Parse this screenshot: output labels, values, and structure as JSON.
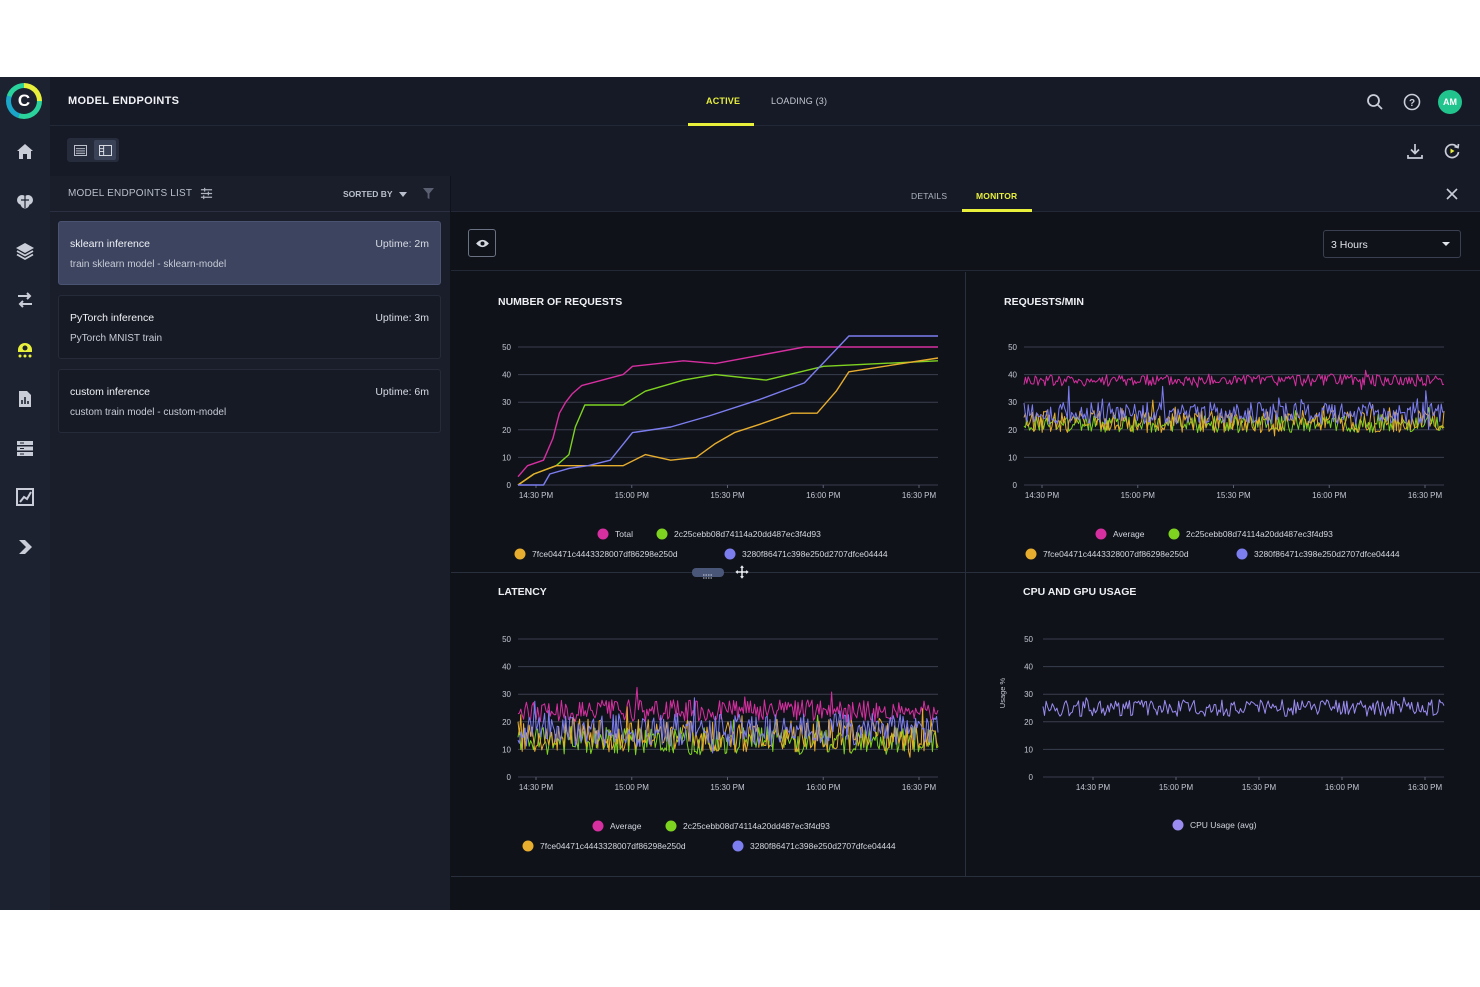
{
  "header": {
    "title": "MODEL ENDPOINTS",
    "tabs": [
      {
        "label": "ACTIVE"
      },
      {
        "label": "LOADING (3)"
      }
    ],
    "avatar_initials": "AM"
  },
  "list": {
    "title": "MODEL ENDPOINTS LIST",
    "sort_label": "SORTED BY",
    "endpoints": [
      {
        "name": "sklearn inference",
        "subtitle": "train sklearn model - sklearn-model",
        "uptime": "Uptime: 2m",
        "selected": true
      },
      {
        "name": "PyTorch inference",
        "subtitle": "PyTorch MNIST train",
        "uptime": "Uptime: 3m",
        "selected": false
      },
      {
        "name": "custom inference",
        "subtitle": "custom train model - custom-model",
        "uptime": "Uptime: 6m",
        "selected": false
      }
    ]
  },
  "detail_tabs": [
    {
      "label": "DETAILS"
    },
    {
      "label": "MONITOR"
    }
  ],
  "time_range": {
    "value": "3 Hours"
  },
  "colors": {
    "pink": "#d62fa0",
    "green": "#7ed321",
    "yellow": "#e6ad2e",
    "purple": "#7c7ef0",
    "accent": "#e8f03c"
  },
  "chart_data": [
    {
      "type": "line",
      "title": "NUMBER OF REQUESTS",
      "x_ticks": [
        "14:30 PM",
        "15:00 PM",
        "15:30 PM",
        "16:00 PM",
        "16:30 PM"
      ],
      "xlim_minutes": [
        0,
        132
      ],
      "ylim": [
        0,
        50
      ],
      "y_ticks": [
        0,
        10,
        20,
        30,
        40,
        50
      ],
      "series": [
        {
          "name": "Total",
          "color": "#d62fa0",
          "points": [
            [
              0,
              3
            ],
            [
              3,
              7
            ],
            [
              8,
              9
            ],
            [
              11,
              17
            ],
            [
              13,
              26
            ],
            [
              15,
              30
            ],
            [
              17,
              33
            ],
            [
              20,
              36
            ],
            [
              33,
              40
            ],
            [
              36,
              43
            ],
            [
              52,
              45
            ],
            [
              62,
              44
            ],
            [
              76,
              47
            ],
            [
              90,
              50
            ],
            [
              132,
              50
            ]
          ]
        },
        {
          "name": "2c25cebb08d74114a20dd487ec3f4d93",
          "color": "#7ed321",
          "points": [
            [
              0,
              0
            ],
            [
              5,
              4
            ],
            [
              12,
              7
            ],
            [
              16,
              11
            ],
            [
              18,
              21
            ],
            [
              21,
              29
            ],
            [
              33,
              29
            ],
            [
              40,
              34
            ],
            [
              52,
              38
            ],
            [
              62,
              40
            ],
            [
              78,
              38
            ],
            [
              96,
              43
            ],
            [
              132,
              45
            ]
          ]
        },
        {
          "name": "7fce04471c4443328007df86298e250d",
          "color": "#e6ad2e",
          "points": [
            [
              0,
              0
            ],
            [
              5,
              4
            ],
            [
              12,
              7
            ],
            [
              33,
              7
            ],
            [
              40,
              11
            ],
            [
              48,
              9
            ],
            [
              56,
              10
            ],
            [
              62,
              15
            ],
            [
              68,
              19
            ],
            [
              76,
              22
            ],
            [
              86,
              26
            ],
            [
              94,
              26
            ],
            [
              100,
              34
            ],
            [
              104,
              41
            ],
            [
              132,
              46
            ]
          ]
        },
        {
          "name": "3280f86471c398e250d2707dfce04444",
          "color": "#7c7ef0",
          "points": [
            [
              0,
              0
            ],
            [
              8,
              0
            ],
            [
              10,
              4
            ],
            [
              16,
              6
            ],
            [
              22,
              7
            ],
            [
              29,
              9
            ],
            [
              36,
              19
            ],
            [
              48,
              21
            ],
            [
              60,
              25
            ],
            [
              76,
              31
            ],
            [
              90,
              37
            ],
            [
              104,
              54
            ],
            [
              132,
              54
            ]
          ]
        }
      ]
    },
    {
      "type": "line",
      "title": "REQUESTS/MIN",
      "x_ticks": [
        "14:30 PM",
        "15:00 PM",
        "15:30 PM",
        "16:00 PM",
        "16:30 PM"
      ],
      "ylim": [
        0,
        50
      ],
      "y_ticks": [
        0,
        10,
        20,
        30,
        40,
        50
      ],
      "series": [
        {
          "name": "Average",
          "color": "#d62fa0",
          "mean": 38,
          "noise": 2.2
        },
        {
          "name": "2c25cebb08d74114a20dd487ec3f4d93",
          "color": "#7ed321",
          "mean": 22,
          "noise": 3
        },
        {
          "name": "7fce04471c4443328007df86298e250d",
          "color": "#e6ad2e",
          "mean": 23,
          "noise": 4
        },
        {
          "name": "3280f86471c398e250d2707dfce04444",
          "color": "#7c7ef0",
          "mean": 26,
          "noise": 4
        }
      ]
    },
    {
      "type": "line",
      "title": "LATENCY",
      "x_ticks": [
        "14:30 PM",
        "15:00 PM",
        "15:30 PM",
        "16:00 PM",
        "16:30 PM"
      ],
      "ylim": [
        0,
        50
      ],
      "y_ticks": [
        0,
        10,
        20,
        30,
        40,
        50
      ],
      "series": [
        {
          "name": "Average",
          "color": "#d62fa0",
          "mean": 24,
          "noise": 4
        },
        {
          "name": "2c25cebb08d74114a20dd487ec3f4d93",
          "color": "#7ed321",
          "mean": 13,
          "noise": 5
        },
        {
          "name": "7fce04471c4443328007df86298e250d",
          "color": "#e6ad2e",
          "mean": 15,
          "noise": 6
        },
        {
          "name": "3280f86471c398e250d2707dfce04444",
          "color": "#7c7ef0",
          "mean": 17,
          "noise": 6
        }
      ]
    },
    {
      "type": "line",
      "title": "CPU AND GPU USAGE",
      "ylabel": "Usage %",
      "x_ticks": [
        "14:30 PM",
        "15:00 PM",
        "15:30 PM",
        "16:00 PM",
        "16:30 PM"
      ],
      "ylim": [
        0,
        50
      ],
      "y_ticks": [
        0,
        10,
        20,
        30,
        40,
        50
      ],
      "series": [
        {
          "name": "CPU Usage (avg)",
          "color": "#9a8cf0",
          "mean": 25,
          "noise": 3
        }
      ]
    }
  ]
}
